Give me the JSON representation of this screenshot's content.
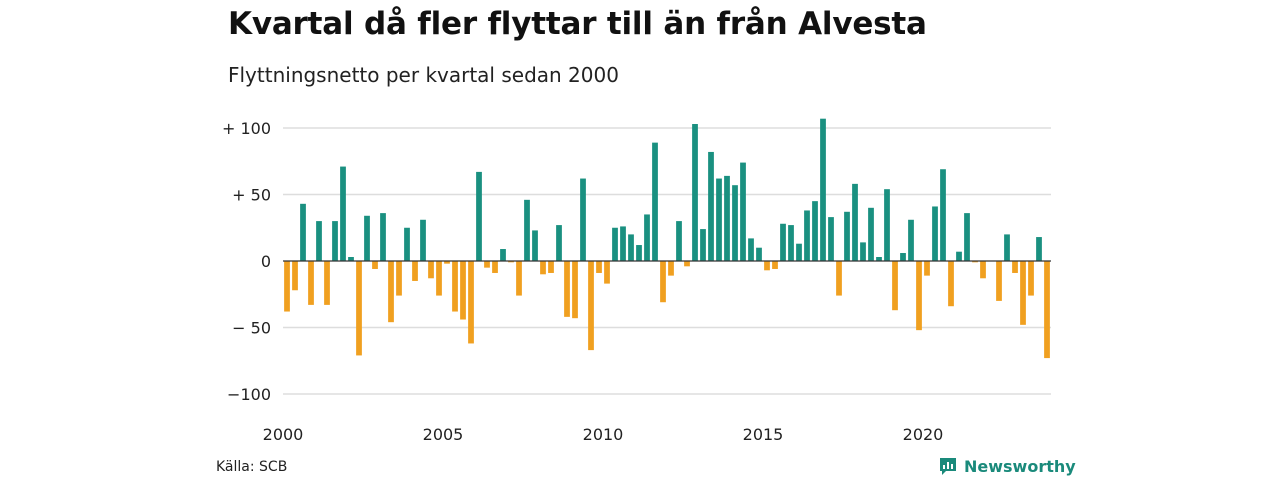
{
  "header": {
    "title": "Kvartal då fler flyttar till än från Alvesta",
    "subtitle": "Flyttningsnetto per kvartal sedan 2000"
  },
  "footer": {
    "source": "Källa: SCB",
    "brand": "Newsworthy",
    "brand_icon": "bar-chart-bubble-icon"
  },
  "colors": {
    "positive": "#1a9080",
    "negative": "#f0a020",
    "grid": "#dddddd",
    "brand": "#1a8a7b"
  },
  "chart_data": {
    "type": "bar",
    "title": "Kvartal då fler flyttar till än från Alvesta",
    "subtitle": "Flyttningsnetto per kvartal sedan 2000",
    "xlabel": "",
    "ylabel": "",
    "ylim": [
      -110,
      110
    ],
    "grid": true,
    "legend": "none",
    "x_start": "2000 Q1",
    "y_ticks": [
      {
        "value": 100,
        "label": "+ 100"
      },
      {
        "value": 50,
        "label": "+  50"
      },
      {
        "value": 0,
        "label": "0"
      },
      {
        "value": -50,
        "label": "− 50"
      },
      {
        "value": -100,
        "label": "−100"
      }
    ],
    "x_ticks": [
      {
        "index": 0,
        "label": "2000"
      },
      {
        "index": 20,
        "label": "2005"
      },
      {
        "index": 40,
        "label": "2010"
      },
      {
        "index": 60,
        "label": "2015"
      },
      {
        "index": 80,
        "label": "2020"
      }
    ],
    "values": [
      -38,
      -22,
      43,
      -33,
      30,
      -33,
      30,
      71,
      3,
      -71,
      34,
      -6,
      36,
      -46,
      -26,
      25,
      -15,
      31,
      -13,
      -26,
      -2,
      -38,
      -44,
      -62,
      67,
      -5,
      -9,
      9,
      -1,
      -26,
      46,
      23,
      -10,
      -9,
      27,
      -42,
      -43,
      62,
      -67,
      -9,
      -17,
      25,
      26,
      20,
      12,
      35,
      89,
      -31,
      -11,
      30,
      -4,
      103,
      24,
      82,
      62,
      64,
      57,
      74,
      17,
      10,
      -7,
      -6,
      28,
      27,
      13,
      38,
      45,
      107,
      33,
      -26,
      37,
      58,
      14,
      40,
      3,
      54,
      -37,
      6,
      31,
      -52,
      -11,
      41,
      69,
      -34,
      7,
      36,
      -1,
      -13,
      0,
      -30,
      20,
      -9,
      -48,
      -26,
      18,
      -73
    ]
  }
}
